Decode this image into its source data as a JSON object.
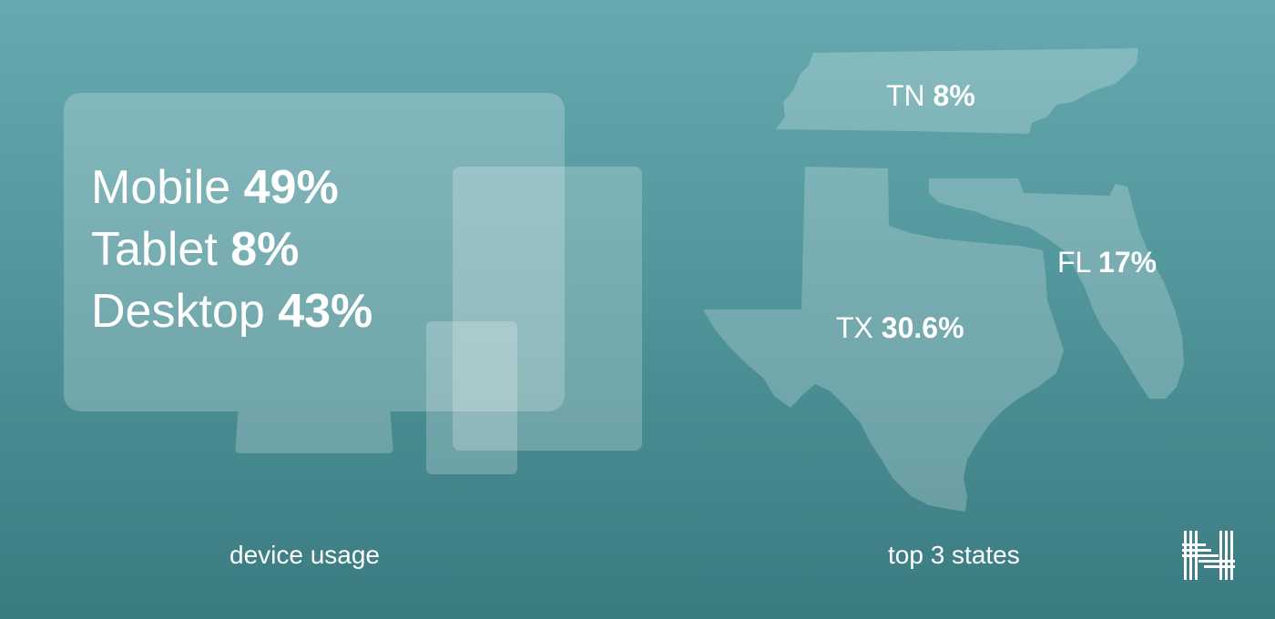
{
  "devices": {
    "rows": [
      {
        "name": "Mobile",
        "value": "49%"
      },
      {
        "name": "Tablet",
        "value": "8%"
      },
      {
        "name": "Desktop",
        "value": "43%"
      }
    ],
    "caption": "device usage"
  },
  "states": {
    "items": [
      {
        "abbr": "TN",
        "value": "8%"
      },
      {
        "abbr": "FL",
        "value": "17%"
      },
      {
        "abbr": "TX",
        "value": "30.6%"
      }
    ],
    "caption": "top 3 states"
  },
  "colors": {
    "background_top": "#66aab0",
    "background_bottom": "#3a7b80",
    "shape_fill": "rgba(255,255,255,0.22)",
    "text": "#ffffff"
  },
  "icons": {
    "logo": "brand-logo-icon"
  }
}
